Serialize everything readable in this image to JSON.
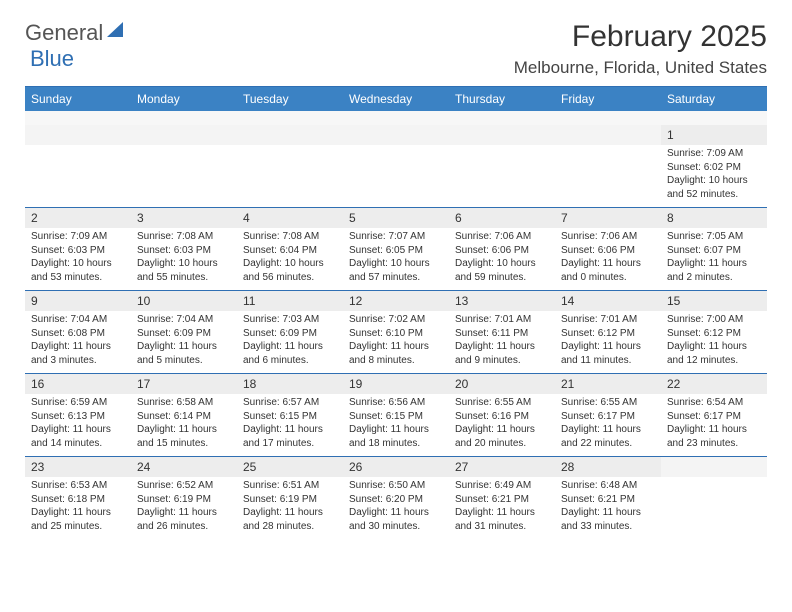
{
  "logo": {
    "text1": "General",
    "text2": "Blue"
  },
  "title": "February 2025",
  "location": "Melbourne, Florida, United States",
  "colors": {
    "header_bg": "#3b82c4",
    "rule": "#2f6fb3",
    "daynum_bg": "#ededed",
    "text": "#333333"
  },
  "day_headers": [
    "Sunday",
    "Monday",
    "Tuesday",
    "Wednesday",
    "Thursday",
    "Friday",
    "Saturday"
  ],
  "weeks": [
    [
      null,
      null,
      null,
      null,
      null,
      null,
      {
        "n": "1",
        "sr": "7:09 AM",
        "ss": "6:02 PM",
        "dl": "10 hours and 52 minutes."
      }
    ],
    [
      {
        "n": "2",
        "sr": "7:09 AM",
        "ss": "6:03 PM",
        "dl": "10 hours and 53 minutes."
      },
      {
        "n": "3",
        "sr": "7:08 AM",
        "ss": "6:03 PM",
        "dl": "10 hours and 55 minutes."
      },
      {
        "n": "4",
        "sr": "7:08 AM",
        "ss": "6:04 PM",
        "dl": "10 hours and 56 minutes."
      },
      {
        "n": "5",
        "sr": "7:07 AM",
        "ss": "6:05 PM",
        "dl": "10 hours and 57 minutes."
      },
      {
        "n": "6",
        "sr": "7:06 AM",
        "ss": "6:06 PM",
        "dl": "10 hours and 59 minutes."
      },
      {
        "n": "7",
        "sr": "7:06 AM",
        "ss": "6:06 PM",
        "dl": "11 hours and 0 minutes."
      },
      {
        "n": "8",
        "sr": "7:05 AM",
        "ss": "6:07 PM",
        "dl": "11 hours and 2 minutes."
      }
    ],
    [
      {
        "n": "9",
        "sr": "7:04 AM",
        "ss": "6:08 PM",
        "dl": "11 hours and 3 minutes."
      },
      {
        "n": "10",
        "sr": "7:04 AM",
        "ss": "6:09 PM",
        "dl": "11 hours and 5 minutes."
      },
      {
        "n": "11",
        "sr": "7:03 AM",
        "ss": "6:09 PM",
        "dl": "11 hours and 6 minutes."
      },
      {
        "n": "12",
        "sr": "7:02 AM",
        "ss": "6:10 PM",
        "dl": "11 hours and 8 minutes."
      },
      {
        "n": "13",
        "sr": "7:01 AM",
        "ss": "6:11 PM",
        "dl": "11 hours and 9 minutes."
      },
      {
        "n": "14",
        "sr": "7:01 AM",
        "ss": "6:12 PM",
        "dl": "11 hours and 11 minutes."
      },
      {
        "n": "15",
        "sr": "7:00 AM",
        "ss": "6:12 PM",
        "dl": "11 hours and 12 minutes."
      }
    ],
    [
      {
        "n": "16",
        "sr": "6:59 AM",
        "ss": "6:13 PM",
        "dl": "11 hours and 14 minutes."
      },
      {
        "n": "17",
        "sr": "6:58 AM",
        "ss": "6:14 PM",
        "dl": "11 hours and 15 minutes."
      },
      {
        "n": "18",
        "sr": "6:57 AM",
        "ss": "6:15 PM",
        "dl": "11 hours and 17 minutes."
      },
      {
        "n": "19",
        "sr": "6:56 AM",
        "ss": "6:15 PM",
        "dl": "11 hours and 18 minutes."
      },
      {
        "n": "20",
        "sr": "6:55 AM",
        "ss": "6:16 PM",
        "dl": "11 hours and 20 minutes."
      },
      {
        "n": "21",
        "sr": "6:55 AM",
        "ss": "6:17 PM",
        "dl": "11 hours and 22 minutes."
      },
      {
        "n": "22",
        "sr": "6:54 AM",
        "ss": "6:17 PM",
        "dl": "11 hours and 23 minutes."
      }
    ],
    [
      {
        "n": "23",
        "sr": "6:53 AM",
        "ss": "6:18 PM",
        "dl": "11 hours and 25 minutes."
      },
      {
        "n": "24",
        "sr": "6:52 AM",
        "ss": "6:19 PM",
        "dl": "11 hours and 26 minutes."
      },
      {
        "n": "25",
        "sr": "6:51 AM",
        "ss": "6:19 PM",
        "dl": "11 hours and 28 minutes."
      },
      {
        "n": "26",
        "sr": "6:50 AM",
        "ss": "6:20 PM",
        "dl": "11 hours and 30 minutes."
      },
      {
        "n": "27",
        "sr": "6:49 AM",
        "ss": "6:21 PM",
        "dl": "11 hours and 31 minutes."
      },
      {
        "n": "28",
        "sr": "6:48 AM",
        "ss": "6:21 PM",
        "dl": "11 hours and 33 minutes."
      },
      null
    ]
  ],
  "labels": {
    "sunrise": "Sunrise:",
    "sunset": "Sunset:",
    "daylight": "Daylight:"
  }
}
